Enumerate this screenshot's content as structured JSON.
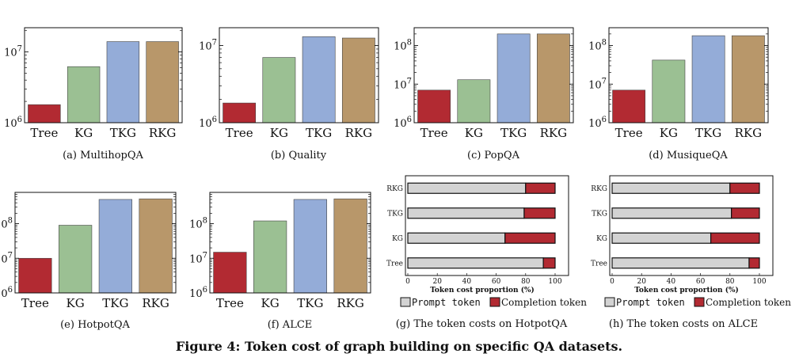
{
  "figure": {
    "title": "Figure 4: Token cost of graph building on specific QA datasets."
  },
  "colors": {
    "Tree": "#b22a32",
    "KG": "#9bc093",
    "TKG": "#94acd8",
    "RKG": "#b8976a",
    "prompt": "#d3d3d3",
    "completion": "#b22a32"
  },
  "chart_data": [
    {
      "type": "bar",
      "caption": "(a)  MultihopQA",
      "categories": [
        "Tree",
        "KG",
        "TKG",
        "RKG"
      ],
      "values": [
        1800000,
        6200000,
        14000000,
        14000000
      ],
      "log_scale": true,
      "ylim": [
        1000000,
        22000000
      ],
      "yticks": [
        {
          "value": 1000000,
          "label": "10^6"
        },
        {
          "value": 10000000,
          "label": "10^7"
        }
      ]
    },
    {
      "type": "bar",
      "caption": "(b)  Quality",
      "categories": [
        "Tree",
        "KG",
        "TKG",
        "RKG"
      ],
      "values": [
        1800000,
        7000000,
        13000000,
        12500000
      ],
      "log_scale": true,
      "ylim": [
        1000000,
        17000000
      ],
      "yticks": [
        {
          "value": 1000000,
          "label": "10^6"
        },
        {
          "value": 10000000,
          "label": "10^7"
        }
      ]
    },
    {
      "type": "bar",
      "caption": "(c)  PopQA",
      "categories": [
        "Tree",
        "KG",
        "TKG",
        "RKG"
      ],
      "values": [
        7000000,
        13000000,
        200000000,
        200000000
      ],
      "log_scale": true,
      "ylim": [
        1000000,
        290000000
      ],
      "yticks": [
        {
          "value": 1000000,
          "label": "10^6"
        },
        {
          "value": 10000000,
          "label": "10^7"
        },
        {
          "value": 100000000,
          "label": "10^8"
        }
      ]
    },
    {
      "type": "bar",
      "caption": "(d)  MusiqueQA",
      "categories": [
        "Tree",
        "KG",
        "TKG",
        "RKG"
      ],
      "values": [
        7000000,
        42000000,
        180000000,
        180000000
      ],
      "log_scale": true,
      "ylim": [
        1000000,
        290000000
      ],
      "yticks": [
        {
          "value": 1000000,
          "label": "10^6"
        },
        {
          "value": 10000000,
          "label": "10^7"
        },
        {
          "value": 100000000,
          "label": "10^8"
        }
      ]
    },
    {
      "type": "bar",
      "caption": "(e)  HotpotQA",
      "categories": [
        "Tree",
        "KG",
        "TKG",
        "RKG"
      ],
      "values": [
        10000000,
        90000000,
        500000000,
        520000000
      ],
      "log_scale": true,
      "ylim": [
        1000000,
        800000000
      ],
      "yticks": [
        {
          "value": 1000000,
          "label": "10^6"
        },
        {
          "value": 10000000,
          "label": "10^7"
        },
        {
          "value": 100000000,
          "label": "10^8"
        }
      ]
    },
    {
      "type": "bar",
      "caption": "(f)  ALCE",
      "categories": [
        "Tree",
        "KG",
        "TKG",
        "RKG"
      ],
      "values": [
        15000000,
        120000000,
        500000000,
        520000000
      ],
      "log_scale": true,
      "ylim": [
        1000000,
        800000000
      ],
      "yticks": [
        {
          "value": 1000000,
          "label": "10^6"
        },
        {
          "value": 10000000,
          "label": "10^7"
        },
        {
          "value": 100000000,
          "label": "10^8"
        }
      ]
    },
    {
      "type": "bar",
      "orientation": "horizontal",
      "stacked": true,
      "caption": "(g)  The token costs on HotpotQA",
      "categories": [
        "RKG",
        "TKG",
        "KG",
        "Tree"
      ],
      "series": [
        {
          "name": "Prompt token",
          "values": [
            80,
            79,
            66,
            92
          ]
        },
        {
          "name": "Completion token",
          "values": [
            20,
            21,
            34,
            8
          ]
        }
      ],
      "xlabel": "Token cost proportion (%)",
      "xlim": [
        0,
        100
      ],
      "xticks": [
        0,
        20,
        40,
        60,
        80,
        100
      ],
      "legend": "bottom"
    },
    {
      "type": "bar",
      "orientation": "horizontal",
      "stacked": true,
      "caption": "(h)  The token costs on ALCE",
      "categories": [
        "RKG",
        "TKG",
        "KG",
        "Tree"
      ],
      "series": [
        {
          "name": "Prompt token",
          "values": [
            80,
            81,
            67,
            93
          ]
        },
        {
          "name": "Completion token",
          "values": [
            20,
            19,
            33,
            7
          ]
        }
      ],
      "xlabel": "Token cost proportion (%)",
      "xlim": [
        0,
        100
      ],
      "xticks": [
        0,
        20,
        40,
        60,
        80,
        100
      ],
      "legend": "bottom"
    }
  ]
}
